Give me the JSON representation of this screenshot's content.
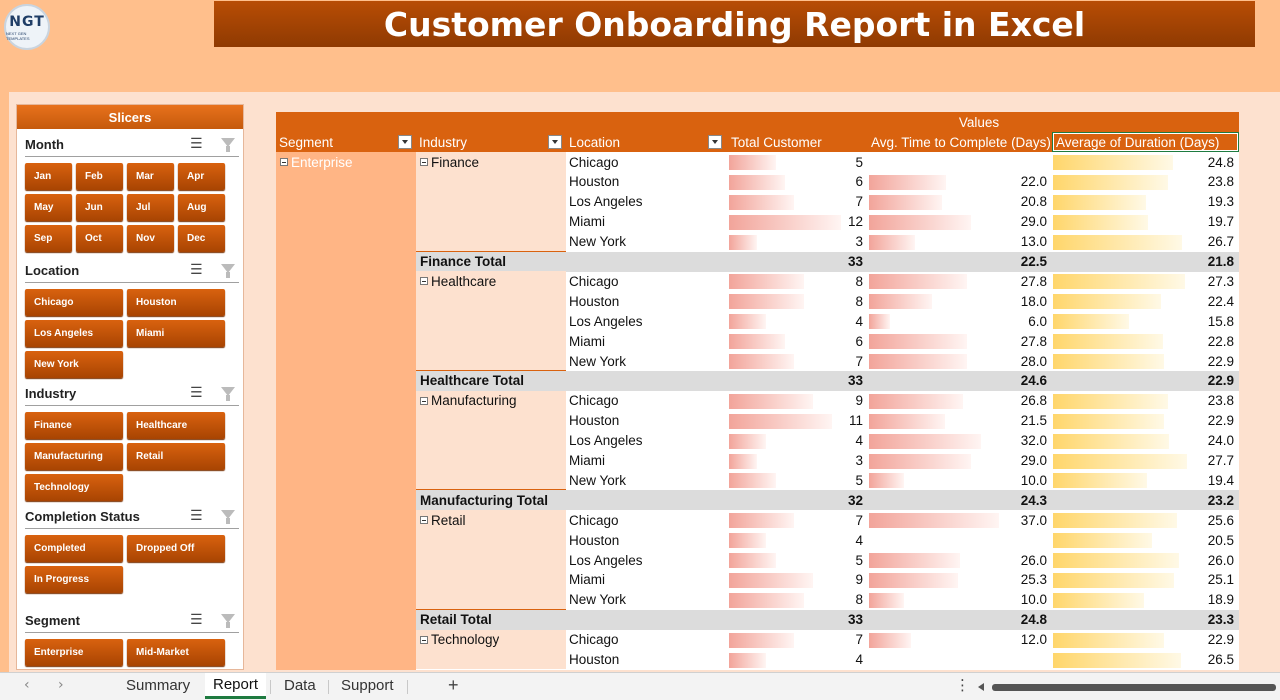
{
  "title": "Customer Onboarding Report in Excel",
  "logo": {
    "text": "NGT",
    "subtext": "NEXT GEN TEMPLATES"
  },
  "slicers_panel": {
    "title": "Slicers",
    "month": {
      "name": "Month",
      "items": [
        "Jan",
        "Feb",
        "Mar",
        "Apr",
        "May",
        "Jun",
        "Jul",
        "Aug",
        "Sep",
        "Oct",
        "Nov",
        "Dec"
      ]
    },
    "location": {
      "name": "Location",
      "items": [
        "Chicago",
        "Houston",
        "Los Angeles",
        "Miami",
        "New York"
      ]
    },
    "industry": {
      "name": "Industry",
      "items": [
        "Finance",
        "Healthcare",
        "Manufacturing",
        "Retail",
        "Technology"
      ]
    },
    "status": {
      "name": "Completion Status",
      "items": [
        "Completed",
        "Dropped Off",
        "In Progress"
      ]
    },
    "segment": {
      "name": "Segment",
      "items": [
        "Enterprise",
        "Mid-Market"
      ]
    }
  },
  "pivot": {
    "values_label": "Values",
    "headers": {
      "segment": "Segment",
      "industry": "Industry",
      "location": "Location",
      "total": "Total Customer",
      "avg_time": "Avg. Time to Complete (Days)",
      "avg_dur": "Average of Duration (Days)"
    },
    "segment_label": "Enterprise",
    "groups": [
      {
        "industry": "Finance",
        "rows": [
          {
            "loc": "Chicago",
            "total": "5",
            "avg": "",
            "dur": "24.8"
          },
          {
            "loc": "Houston",
            "total": "6",
            "avg": "22.0",
            "dur": "23.8"
          },
          {
            "loc": "Los Angeles",
            "total": "7",
            "avg": "20.8",
            "dur": "19.3"
          },
          {
            "loc": "Miami",
            "total": "12",
            "avg": "29.0",
            "dur": "19.7"
          },
          {
            "loc": "New York",
            "total": "3",
            "avg": "13.0",
            "dur": "26.7"
          }
        ],
        "total_label": "Finance Total",
        "sum": "33",
        "avg": "22.5",
        "dur": "21.8"
      },
      {
        "industry": "Healthcare",
        "rows": [
          {
            "loc": "Chicago",
            "total": "8",
            "avg": "27.8",
            "dur": "27.3"
          },
          {
            "loc": "Houston",
            "total": "8",
            "avg": "18.0",
            "dur": "22.4"
          },
          {
            "loc": "Los Angeles",
            "total": "4",
            "avg": "6.0",
            "dur": "15.8"
          },
          {
            "loc": "Miami",
            "total": "6",
            "avg": "27.8",
            "dur": "22.8"
          },
          {
            "loc": "New York",
            "total": "7",
            "avg": "28.0",
            "dur": "22.9"
          }
        ],
        "total_label": "Healthcare Total",
        "sum": "33",
        "avg": "24.6",
        "dur": "22.9"
      },
      {
        "industry": "Manufacturing",
        "rows": [
          {
            "loc": "Chicago",
            "total": "9",
            "avg": "26.8",
            "dur": "23.8"
          },
          {
            "loc": "Houston",
            "total": "11",
            "avg": "21.5",
            "dur": "22.9"
          },
          {
            "loc": "Los Angeles",
            "total": "4",
            "avg": "32.0",
            "dur": "24.0"
          },
          {
            "loc": "Miami",
            "total": "3",
            "avg": "29.0",
            "dur": "27.7"
          },
          {
            "loc": "New York",
            "total": "5",
            "avg": "10.0",
            "dur": "19.4"
          }
        ],
        "total_label": "Manufacturing Total",
        "sum": "32",
        "avg": "24.3",
        "dur": "23.2"
      },
      {
        "industry": "Retail",
        "rows": [
          {
            "loc": "Chicago",
            "total": "7",
            "avg": "37.0",
            "dur": "25.6"
          },
          {
            "loc": "Houston",
            "total": "4",
            "avg": "",
            "dur": "20.5"
          },
          {
            "loc": "Los Angeles",
            "total": "5",
            "avg": "26.0",
            "dur": "26.0"
          },
          {
            "loc": "Miami",
            "total": "9",
            "avg": "25.3",
            "dur": "25.1"
          },
          {
            "loc": "New York",
            "total": "8",
            "avg": "10.0",
            "dur": "18.9"
          }
        ],
        "total_label": "Retail Total",
        "sum": "33",
        "avg": "24.8",
        "dur": "23.3"
      },
      {
        "industry": "Technology",
        "rows": [
          {
            "loc": "Chicago",
            "total": "7",
            "avg": "12.0",
            "dur": "22.9"
          },
          {
            "loc": "Houston",
            "total": "4",
            "avg": "",
            "dur": "26.5"
          }
        ]
      }
    ]
  },
  "sheet_tabs": [
    "Summary",
    "Report",
    "Data",
    "Support"
  ],
  "active_tab": "Report",
  "colors": {
    "accent": "#d9620f",
    "title_bg": "#a04302",
    "bar_red": "#f2a49a",
    "bar_yellow": "#ffd66b"
  }
}
